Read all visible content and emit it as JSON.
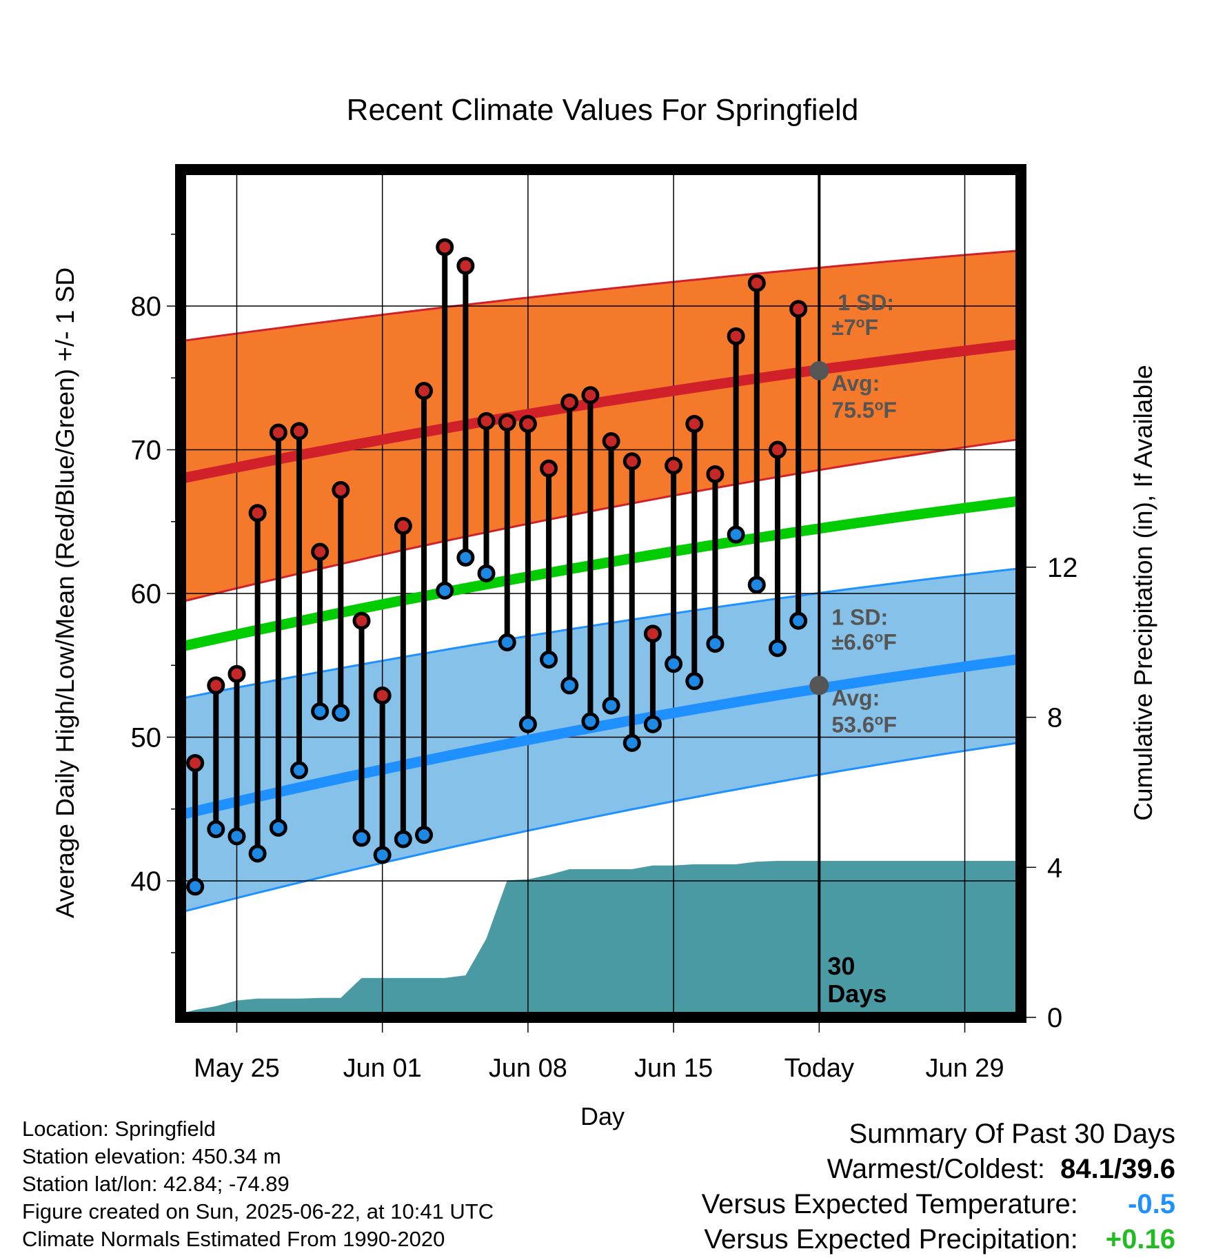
{
  "chart_data": {
    "type": "line",
    "title": "Recent Climate Values For Springfield",
    "xlabel": "Day",
    "ylabel_left": "Average Daily High/Low/Mean (Red/Blue/Green) +/- 1 SD",
    "ylabel_right": "Cumulative Precipitation (in), If Available",
    "x_tick_labels": [
      "May 25",
      "Jun 01",
      "Jun 08",
      "Jun 15",
      "Today",
      "Jun 29"
    ],
    "y_left_ticks": [
      "40",
      "50",
      "60",
      "70",
      "80"
    ],
    "y_right_ticks": [
      "0",
      "4",
      "8",
      "12"
    ],
    "y_left_range": [
      30.5,
      89.5
    ],
    "y_right_range": [
      0,
      22.6
    ],
    "x_range_days_from_may22": [
      0.3,
      40.7
    ],
    "normals_dates": [
      "May 22",
      "Jul 02"
    ],
    "normal_high": [
      67.9,
      77.4
    ],
    "normal_high_sd_band": [
      [
        59.3,
        77.5
      ],
      [
        70.8,
        83.9
      ]
    ],
    "normal_low": [
      44.5,
      55.5
    ],
    "normal_low_sd_band": [
      [
        37.7,
        52.6
      ],
      [
        49.7,
        61.8
      ]
    ],
    "normal_mean": [
      56.2,
      66.5
    ],
    "observed_dates": [
      "May 23",
      "May 24",
      "May 25",
      "May 26",
      "May 27",
      "May 28",
      "May 29",
      "May 30",
      "May 31",
      "Jun 01",
      "Jun 02",
      "Jun 03",
      "Jun 04",
      "Jun 05",
      "Jun 06",
      "Jun 07",
      "Jun 08",
      "Jun 09",
      "Jun 10",
      "Jun 11",
      "Jun 12",
      "Jun 13",
      "Jun 14",
      "Jun 15",
      "Jun 16",
      "Jun 17",
      "Jun 18",
      "Jun 19",
      "Jun 20",
      "Jun 21"
    ],
    "observed_high": [
      48.2,
      53.6,
      54.4,
      65.6,
      71.2,
      71.3,
      62.9,
      67.2,
      58.1,
      52.9,
      64.7,
      74.1,
      84.1,
      82.8,
      72.0,
      71.9,
      71.8,
      68.7,
      73.3,
      73.8,
      70.6,
      69.2,
      57.2,
      68.9,
      71.8,
      68.3,
      77.9,
      81.6,
      70.0,
      79.8
    ],
    "observed_low": [
      39.6,
      43.6,
      43.1,
      41.9,
      43.7,
      47.7,
      51.8,
      51.7,
      43.0,
      41.8,
      42.9,
      43.2,
      60.2,
      62.5,
      61.4,
      56.6,
      50.9,
      55.4,
      53.6,
      51.1,
      52.2,
      49.6,
      50.9,
      55.1,
      53.9,
      56.5,
      64.1,
      60.6,
      56.2,
      58.1
    ],
    "cumulative_precip_dates": [
      "May 22",
      "May 23",
      "May 24",
      "May 25",
      "May 26",
      "May 27",
      "May 28",
      "May 29",
      "May 30",
      "May 31",
      "Jun 01",
      "Jun 02",
      "Jun 03",
      "Jun 04",
      "Jun 05",
      "Jun 06",
      "Jun 07",
      "Jun 08",
      "Jun 09",
      "Jun 10",
      "Jun 11",
      "Jun 12",
      "Jun 13",
      "Jun 14",
      "Jun 15",
      "Jun 16",
      "Jun 17",
      "Jun 18",
      "Jun 19",
      "Jun 20",
      "Jun 21",
      "Jun 22",
      "Jul 02"
    ],
    "cumulative_precip": [
      0.05,
      0.2,
      0.3,
      0.45,
      0.5,
      0.5,
      0.5,
      0.52,
      0.52,
      1.05,
      1.05,
      1.05,
      1.05,
      1.05,
      1.12,
      2.1,
      3.65,
      3.68,
      3.8,
      3.95,
      3.95,
      3.95,
      3.95,
      4.05,
      4.05,
      4.08,
      4.08,
      4.08,
      4.15,
      4.17,
      4.17,
      4.17,
      4.17
    ],
    "annotations": {
      "high_sd_label": "1 SD:",
      "high_sd_value": "±7",
      "high_avg_label": "Avg:",
      "high_avg_value": "75.5",
      "low_sd_label": "1 SD:",
      "low_sd_value": "±6.6",
      "low_avg_label": "Avg:",
      "low_avg_value": "53.6",
      "degree_unit": "o",
      "unit_letter": "F",
      "period_number": "30",
      "period_word": "Days"
    },
    "today_high_avg": 75.5,
    "today_low_avg": 53.6,
    "grid": true,
    "colors": {
      "high": "#d0202a",
      "high_band": "#f4792b",
      "low": "#1e90ff",
      "low_band": "#85c1e9",
      "mean": "#00cc00",
      "precip": "#4a9aa4",
      "annotation": "#555555",
      "high_dot": "#c62828",
      "low_dot": "#1e88e5"
    }
  },
  "info": {
    "location": "Location: Springfield",
    "elevation": "Station elevation: 450.34 m",
    "latlon": "Station lat/lon: 42.84; -74.89",
    "created": "Figure created on Sun, 2025-06-22, at 10:41 UTC",
    "normals": "Climate Normals Estimated From 1990-2020"
  },
  "summary": {
    "title": "Summary Of Past 30 Days",
    "warm_cold_label": "Warmest/Coldest:",
    "warm_cold_value": "84.1/39.6",
    "temp_label": "Versus Expected Temperature:",
    "temp_value": "-0.5",
    "temp_color": "#1e90ff",
    "precip_label": "Versus Expected Precipitation:",
    "precip_value": "+0.16",
    "precip_color": "#22bb22"
  }
}
